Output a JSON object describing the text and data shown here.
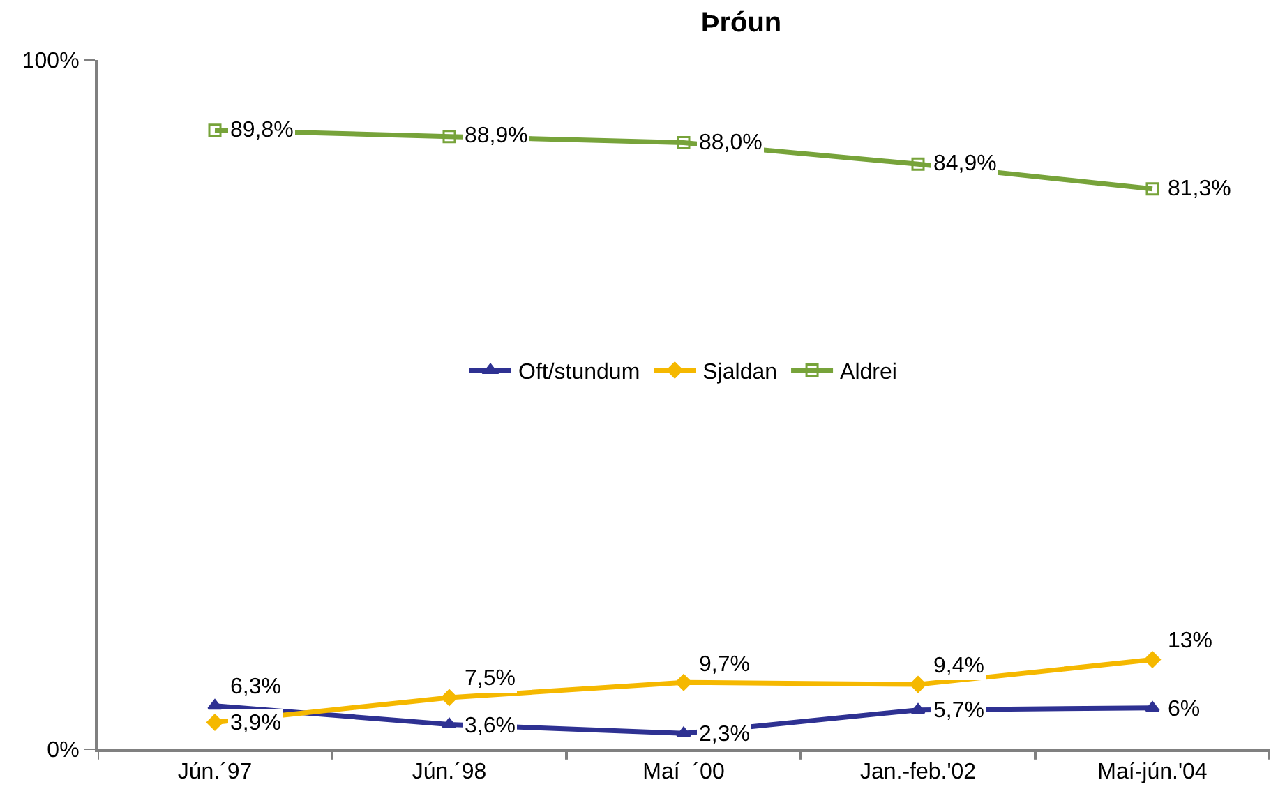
{
  "chart_data": {
    "type": "line",
    "title": "Þróun",
    "categories": [
      "Jún.´97",
      "Jún.´98",
      "Maí  ´00",
      "Jan.-feb.'02",
      "Maí-jún.'04"
    ],
    "series": [
      {
        "name": "Oft/stundum",
        "color": "#2e3192",
        "marker": "triangle",
        "values": [
          6.3,
          3.6,
          2.3,
          5.7,
          6
        ],
        "value_labels": [
          "6,3%",
          "3,6%",
          "2,3%",
          "5,7%",
          "6%"
        ]
      },
      {
        "name": "Sjaldan",
        "color": "#f5b800",
        "marker": "diamond",
        "values": [
          3.9,
          7.5,
          9.7,
          9.4,
          13
        ],
        "value_labels": [
          "3,9%",
          "7,5%",
          "9,7%",
          "9,4%",
          "13%"
        ]
      },
      {
        "name": "Aldrei",
        "color": "#77a33a",
        "marker": "square",
        "values": [
          89.8,
          88.9,
          88.0,
          84.9,
          81.3
        ],
        "value_labels": [
          "89,8%",
          "88,9%",
          "88,0%",
          "84,9%",
          "81,3%"
        ]
      }
    ],
    "ylim": [
      0,
      100
    ],
    "yticks": [
      {
        "value": 0,
        "label": "0%"
      },
      {
        "value": 100,
        "label": "100%"
      }
    ],
    "legend": "center"
  }
}
